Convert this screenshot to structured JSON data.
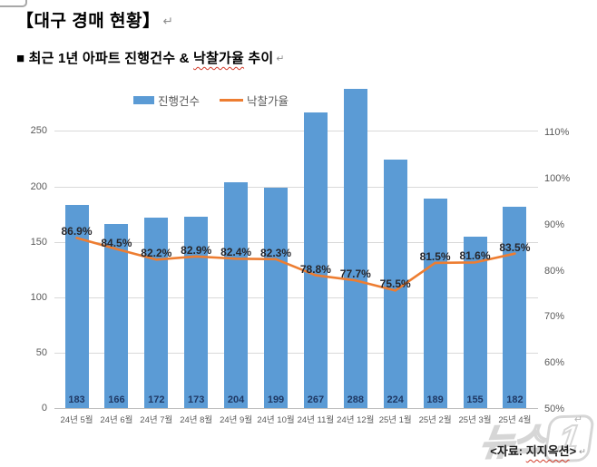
{
  "page": {
    "title": "【대구 경매 현황】",
    "subtitle_prefix": "■ 최근 1년 아파트 진행건수 & ",
    "subtitle_wavy": "낙찰가율",
    "subtitle_suffix": " 추이",
    "paragraph_mark": "↵",
    "source_prefix": "<자료: ",
    "source_wavy": "지지옥션",
    "source_suffix": ">",
    "watermark_text": "뉴스",
    "watermark_numeral": "1"
  },
  "legend": {
    "bars": "진행건수",
    "line": "낙찰가율"
  },
  "colors": {
    "bar": "#5B9BD5",
    "line": "#ED7D31",
    "bar_value_label": "#1F3864",
    "line_value_label": "#26262B",
    "axis_text": "#595959",
    "gridline": "#D9D9D9",
    "wavy_underline": "#D23B2A"
  },
  "chart_data": {
    "type": "bar",
    "subtype": "bar+line combo, dual axis",
    "title": "최근 1년 아파트 진행건수 & 낙찰가율 추이",
    "categories": [
      "24년 5월",
      "24년 6월",
      "24년 7월",
      "24년 8월",
      "24년 9월",
      "24년 10월",
      "24년 11월",
      "24년 12월",
      "25년 1월",
      "25년 2월",
      "25년 3월",
      "25년 4월"
    ],
    "series": [
      {
        "name": "진행건수",
        "type": "bar",
        "axis": "left",
        "values": [
          183,
          166,
          172,
          173,
          204,
          199,
          267,
          288,
          224,
          189,
          155,
          182
        ],
        "data_labels": [
          "183",
          "166",
          "172",
          "173",
          "204",
          "199",
          "267",
          "288",
          "224",
          "189",
          "155",
          "182"
        ]
      },
      {
        "name": "낙찰가율",
        "type": "line",
        "axis": "right",
        "values": [
          86.9,
          84.5,
          82.2,
          82.9,
          82.4,
          82.3,
          78.8,
          77.7,
          75.5,
          81.5,
          81.6,
          83.5
        ],
        "data_labels": [
          "86.9%",
          "84.5%",
          "82.2%",
          "82.9%",
          "82.4%",
          "82.3%",
          "78.8%",
          "77.7%",
          "75.5%",
          "81.5%",
          "81.6%",
          "83.5%"
        ]
      }
    ],
    "left_axis": {
      "ticks": [
        0,
        50,
        100,
        150,
        200,
        250
      ],
      "min": 0,
      "max": 300,
      "label": ""
    },
    "right_axis": {
      "ticks": [
        "50%",
        "60%",
        "70%",
        "80%",
        "90%",
        "100%",
        "110%"
      ],
      "min": 50,
      "max": 110,
      "label": ""
    },
    "grid": true,
    "legend_position": "top"
  }
}
